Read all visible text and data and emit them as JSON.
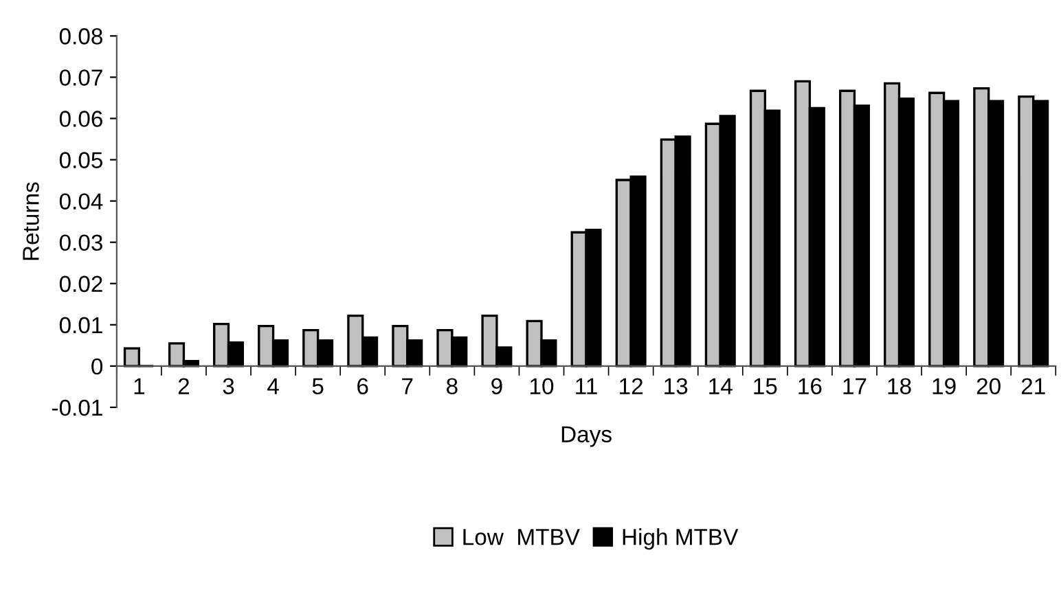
{
  "chart_data": {
    "type": "bar",
    "xlabel": "Days",
    "ylabel": "Returns",
    "categories": [
      "1",
      "2",
      "3",
      "4",
      "5",
      "6",
      "7",
      "8",
      "9",
      "10",
      "11",
      "12",
      "13",
      "14",
      "15",
      "16",
      "17",
      "18",
      "19",
      "20",
      "21"
    ],
    "series": [
      {
        "name": "Low  MTBV",
        "color": "#c0c0c0",
        "values": [
          0.0043,
          0.0055,
          0.0102,
          0.0097,
          0.0087,
          0.0122,
          0.0097,
          0.0087,
          0.0122,
          0.0109,
          0.0324,
          0.0451,
          0.0549,
          0.0587,
          0.0667,
          0.069,
          0.0667,
          0.0685,
          0.0662,
          0.0673,
          0.0653
        ]
      },
      {
        "name": "High MTBV",
        "color": "#000000",
        "values": [
          0,
          0.0012,
          0.0057,
          0.0062,
          0.0062,
          0.0069,
          0.0062,
          0.0069,
          0.0045,
          0.0062,
          0.033,
          0.0459,
          0.0556,
          0.0606,
          0.0619,
          0.0625,
          0.0631,
          0.0648,
          0.0642,
          0.0642,
          0.0642
        ]
      }
    ],
    "ylim": [
      -0.01,
      0.08
    ],
    "yticks": [
      -0.01,
      0,
      0.01,
      0.02,
      0.03,
      0.04,
      0.05,
      0.06,
      0.07,
      0.08
    ],
    "grid": false,
    "legend": "bottom"
  }
}
